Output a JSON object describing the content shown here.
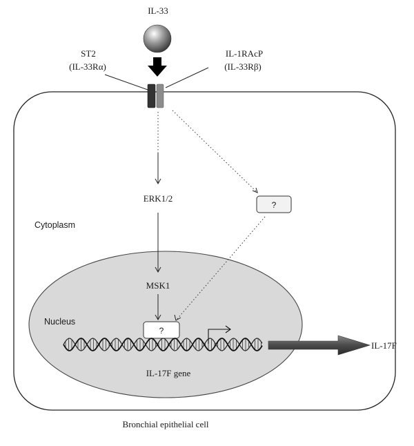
{
  "ligand": {
    "label": "IL-33"
  },
  "receptor_left": {
    "name": "ST2",
    "alias": "(IL-33Rα)"
  },
  "receptor_right": {
    "name": "IL-1RAcP",
    "alias": "(IL-33Rβ)"
  },
  "nodes": {
    "erk": "ERK1/2",
    "msk": "MSK1",
    "unknown_cyto": "?",
    "unknown_nuc": "?",
    "gene": "IL-17F gene",
    "product": "IL-17F"
  },
  "regions": {
    "cytoplasm": "Cytoplasm",
    "nucleus": "Nucleus",
    "cell": "Bronchial epithelial cell"
  },
  "colors": {
    "receptor_left": "#333333",
    "receptor_right": "#8c8c8c",
    "nucleus_fill": "#d9d9d9",
    "product_arrow": "#555555",
    "unknown_box": "#f2f2f2"
  }
}
